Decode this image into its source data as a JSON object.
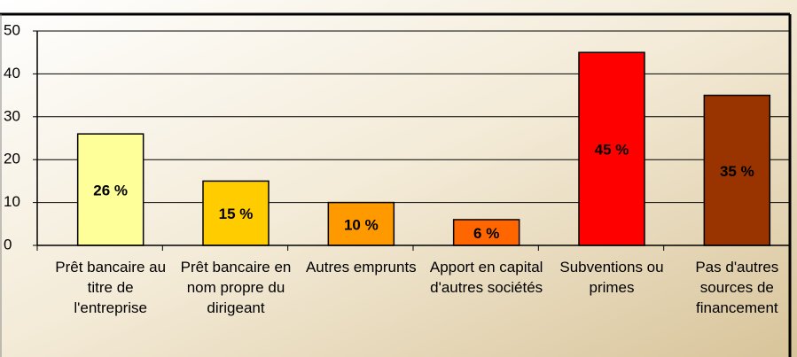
{
  "chart_data": {
    "type": "bar",
    "categories": [
      "Prêt bancaire au titre de l'entreprise",
      "Prêt bancaire en nom propre du dirigeant",
      "Autres emprunts",
      "Apport en capital d'autres sociétés",
      "Subventions ou primes",
      "Pas d'autres sources de financement"
    ],
    "values": [
      26,
      15,
      10,
      6,
      45,
      35
    ],
    "value_labels": [
      "26 %",
      "15 %",
      "10 %",
      "6 %",
      "45 %",
      "35 %"
    ],
    "colors": [
      "#ffff99",
      "#ffcc00",
      "#ff9900",
      "#ff6600",
      "#ff0000",
      "#993300"
    ],
    "ylim": [
      0,
      50
    ],
    "yticks": [
      0,
      10,
      20,
      30,
      40,
      50
    ],
    "grid": true
  }
}
